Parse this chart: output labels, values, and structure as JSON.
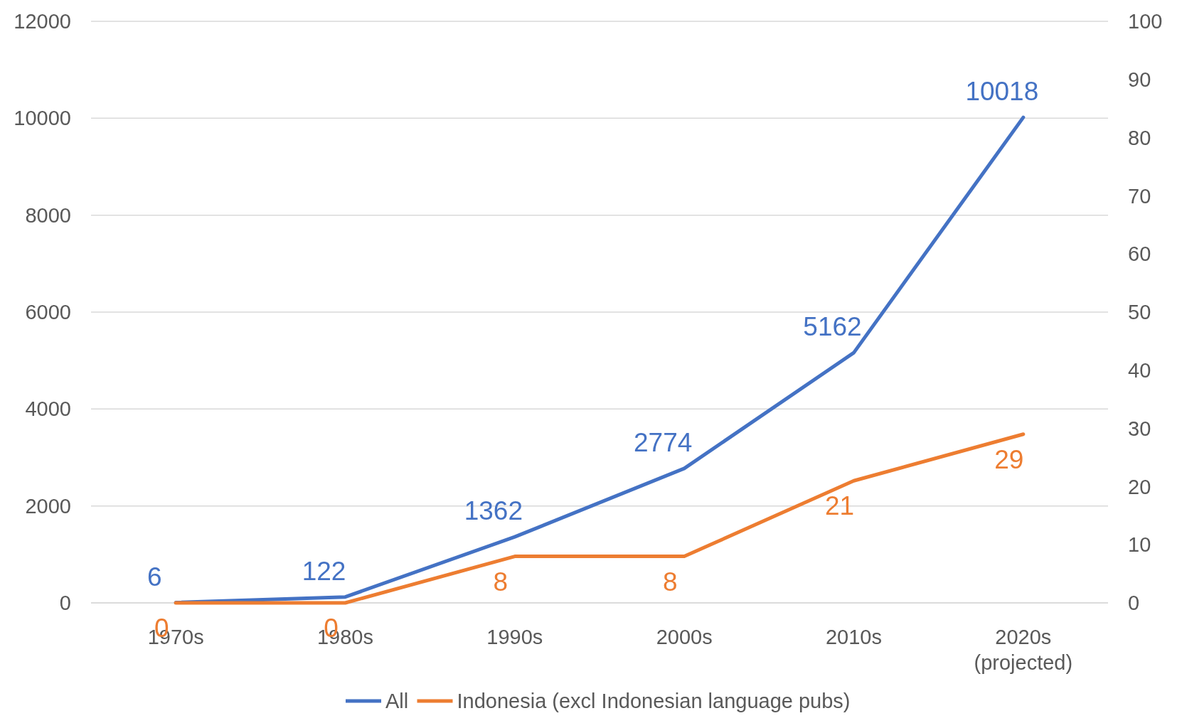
{
  "chart_data": {
    "type": "line",
    "categories": [
      "1970s",
      "1980s",
      "1990s",
      "2000s",
      "2010s",
      "2020s (projected)"
    ],
    "series": [
      {
        "name": "All",
        "color": "#4472c4",
        "values": [
          6,
          122,
          1362,
          2774,
          5162,
          10018
        ]
      },
      {
        "name": "Indonesia (excl Indonesian language pubs)",
        "color": "#ed7d31",
        "axis": "y2",
        "values": [
          0,
          0,
          8,
          8,
          21,
          29
        ]
      }
    ],
    "ylim": [
      0,
      12000
    ],
    "yticks": [
      0,
      2000,
      4000,
      6000,
      8000,
      10000,
      12000
    ],
    "y2lim": [
      0,
      100
    ],
    "y2ticks": [
      0,
      10,
      20,
      30,
      40,
      50,
      60,
      70,
      80,
      90,
      100
    ],
    "grid": "y",
    "legend": "bottom",
    "data_labels": true,
    "marker": "none",
    "line_style": "solid"
  }
}
